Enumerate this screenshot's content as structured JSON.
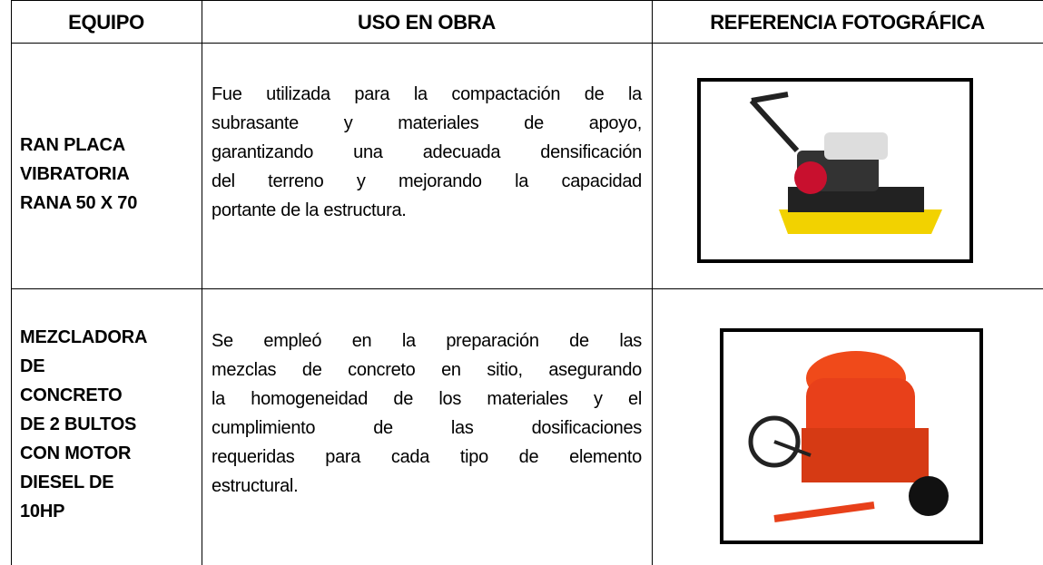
{
  "table": {
    "headers": [
      "EQUIPO",
      "USO EN OBRA",
      "REFERENCIA FOTOGRÁFICA"
    ],
    "rows": [
      {
        "equipment": [
          "RAN PLACA",
          "VIBRATORIA",
          "RANA 50 X 70"
        ],
        "use": [
          "Fue utilizada para la compactación de la",
          "subrasante y materiales de apoyo,",
          "garantizando una adecuada densificación",
          "del terreno y mejorando la capacidad",
          "portante de la estructura."
        ]
      },
      {
        "equipment": [
          "MEZCLADORA",
          "DE",
          "CONCRETO",
          "DE 2 BULTOS",
          "CON MOTOR",
          "DIESEL DE",
          "10HP"
        ],
        "use": [
          "Se empleó en la preparación de las",
          "mezclas de concreto en sitio, asegurando",
          "la homogeneidad de los materiales y el",
          "cumplimiento de las dosificaciones",
          "requeridas para cada tipo de elemento",
          "estructural."
        ]
      }
    ]
  }
}
